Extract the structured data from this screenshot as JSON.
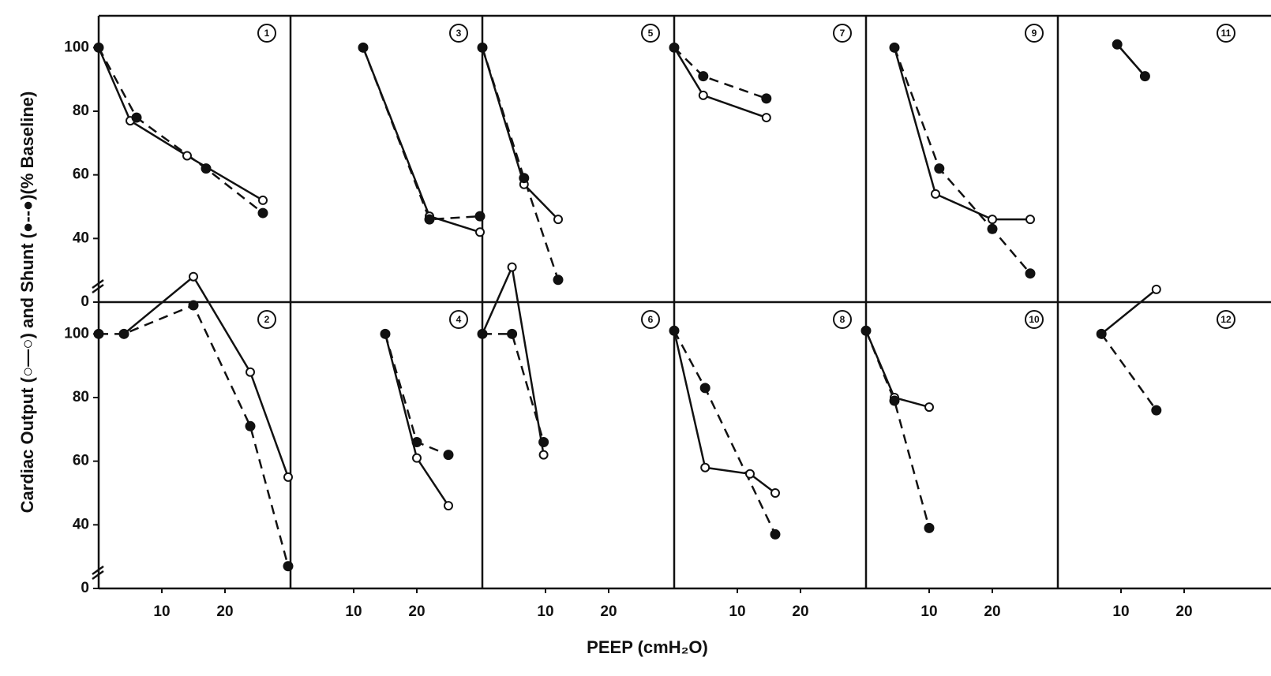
{
  "chart_data": {
    "type": "line",
    "ylabel": "Cardiac Output (○—○) and Shunt (●--●)(% Baseline)",
    "xlabel": "PEEP (cmH₂O)",
    "ylim": [
      0,
      110
    ],
    "ybreak": [
      0,
      20
    ],
    "yticks": [
      0,
      40,
      60,
      80,
      100
    ],
    "xlim": [
      0,
      30
    ],
    "xticks": [
      10,
      20
    ],
    "color": "#111111",
    "panels": [
      {
        "label": "1",
        "series": [
          {
            "marker": "open",
            "linestyle": "solid",
            "x": [
              0,
              5,
              14,
              26
            ],
            "values": [
              100,
              77,
              66,
              52
            ]
          },
          {
            "marker": "filled",
            "linestyle": "dashed",
            "x": [
              0,
              6,
              17,
              26
            ],
            "values": [
              100,
              78,
              62,
              48
            ]
          }
        ]
      },
      {
        "label": "2",
        "series": [
          {
            "marker": "open",
            "linestyle": "solid",
            "x": [
              4,
              15,
              24,
              30
            ],
            "values": [
              100,
              118,
              88,
              55
            ]
          },
          {
            "marker": "filled",
            "linestyle": "dashed",
            "x": [
              0,
              4,
              15,
              24,
              30
            ],
            "values": [
              100,
              100,
              109,
              71,
              27
            ]
          }
        ]
      },
      {
        "label": "3",
        "series": [
          {
            "marker": "open",
            "linestyle": "solid",
            "x": [
              11.5,
              22,
              30
            ],
            "values": [
              100,
              47,
              42
            ]
          },
          {
            "marker": "filled",
            "linestyle": "dashed",
            "x": [
              11.5,
              22,
              30
            ],
            "values": [
              100,
              46,
              47
            ]
          }
        ]
      },
      {
        "label": "4",
        "series": [
          {
            "marker": "open",
            "linestyle": "solid",
            "x": [
              15,
              20,
              25
            ],
            "values": [
              100,
              61,
              46
            ]
          },
          {
            "marker": "filled",
            "linestyle": "dashed",
            "x": [
              15,
              20,
              25
            ],
            "values": [
              100,
              66,
              62
            ]
          }
        ]
      },
      {
        "label": "5",
        "series": [
          {
            "marker": "open",
            "linestyle": "solid",
            "x": [
              0,
              6.6,
              12
            ],
            "values": [
              100,
              57,
              46
            ]
          },
          {
            "marker": "filled",
            "linestyle": "dashed",
            "x": [
              0,
              6.6,
              12
            ],
            "values": [
              100,
              59,
              27
            ]
          }
        ]
      },
      {
        "label": "6",
        "series": [
          {
            "marker": "open",
            "linestyle": "solid",
            "x": [
              0,
              4.7,
              9.7
            ],
            "values": [
              100,
              121,
              62
            ]
          },
          {
            "marker": "filled",
            "linestyle": "dashed",
            "x": [
              0,
              4.7,
              9.7
            ],
            "values": [
              100,
              100,
              66
            ]
          }
        ]
      },
      {
        "label": "7",
        "series": [
          {
            "marker": "open",
            "linestyle": "solid",
            "x": [
              0,
              4.6,
              14.6
            ],
            "values": [
              100,
              85,
              78
            ]
          },
          {
            "marker": "filled",
            "linestyle": "dashed",
            "x": [
              0,
              4.6,
              14.6
            ],
            "values": [
              100,
              91,
              84
            ]
          }
        ]
      },
      {
        "label": "8",
        "series": [
          {
            "marker": "open",
            "linestyle": "solid",
            "x": [
              0,
              4.9,
              12,
              16
            ],
            "values": [
              101,
              58,
              56,
              50
            ]
          },
          {
            "marker": "filled",
            "linestyle": "dashed",
            "x": [
              0,
              4.9,
              16
            ],
            "values": [
              101,
              83,
              37
            ]
          }
        ]
      },
      {
        "label": "9",
        "series": [
          {
            "marker": "open",
            "linestyle": "solid",
            "x": [
              4.5,
              11,
              20,
              26
            ],
            "values": [
              100,
              54,
              46,
              46
            ]
          },
          {
            "marker": "filled",
            "linestyle": "dashed",
            "x": [
              4.5,
              11.6,
              20,
              26
            ],
            "values": [
              100,
              62,
              43,
              29
            ]
          }
        ]
      },
      {
        "label": "10",
        "series": [
          {
            "marker": "open",
            "linestyle": "solid",
            "x": [
              0,
              4.5,
              10
            ],
            "values": [
              101,
              80,
              77
            ]
          },
          {
            "marker": "filled",
            "linestyle": "dashed",
            "x": [
              0,
              4.5,
              10
            ],
            "values": [
              101,
              79,
              39
            ]
          }
        ]
      },
      {
        "label": "11",
        "series": [
          {
            "marker": "open",
            "linestyle": "solid",
            "x": [
              9.4,
              13.8
            ],
            "values": [
              101,
              91
            ]
          },
          {
            "marker": "filled",
            "linestyle": "dashed",
            "x": [
              9.4,
              13.8
            ],
            "values": [
              101,
              91
            ]
          }
        ]
      },
      {
        "label": "12",
        "series": [
          {
            "marker": "open",
            "linestyle": "solid",
            "x": [
              6.9,
              15.6
            ],
            "values": [
              100,
              114
            ]
          },
          {
            "marker": "filled",
            "linestyle": "dashed",
            "x": [
              6.9,
              15.6
            ],
            "values": [
              100,
              76
            ]
          }
        ]
      }
    ]
  }
}
